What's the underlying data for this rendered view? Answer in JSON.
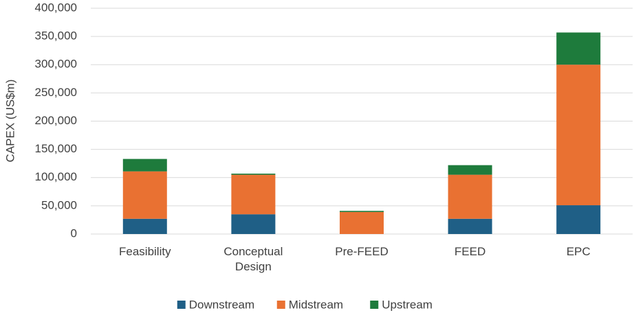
{
  "chart_data": {
    "type": "stacked-bar",
    "y_label": "CAPEX (US$m)",
    "categories": [
      "Feasibility",
      "Conceptual Design",
      "Pre-FEED",
      "FEED",
      "EPC"
    ],
    "series": [
      {
        "name": "Downstream",
        "color": "#1f5f86",
        "values": [
          27000,
          35000,
          0,
          27000,
          51000
        ]
      },
      {
        "name": "Midstream",
        "color": "#e97132",
        "values": [
          84000,
          70000,
          39000,
          78000,
          249000
        ]
      },
      {
        "name": "Upstream",
        "color": "#1e7b3c",
        "values": [
          22000,
          2000,
          2000,
          17000,
          57000
        ]
      }
    ],
    "ylim": [
      0,
      400000
    ],
    "yticks": [
      0,
      {
        "value": 50000,
        "label": "50,000"
      },
      {
        "value": 100000,
        "label": "100,000"
      },
      {
        "value": 150000,
        "label": "150,000"
      },
      {
        "value": 200000,
        "label": "200,000"
      },
      {
        "value": 250000,
        "label": "250,000"
      },
      {
        "value": 300000,
        "label": "300,000"
      },
      {
        "value": 350000,
        "label": "350,000"
      },
      {
        "value": 400000,
        "label": "400,000"
      }
    ],
    "grid": true,
    "legend": "bottom"
  }
}
